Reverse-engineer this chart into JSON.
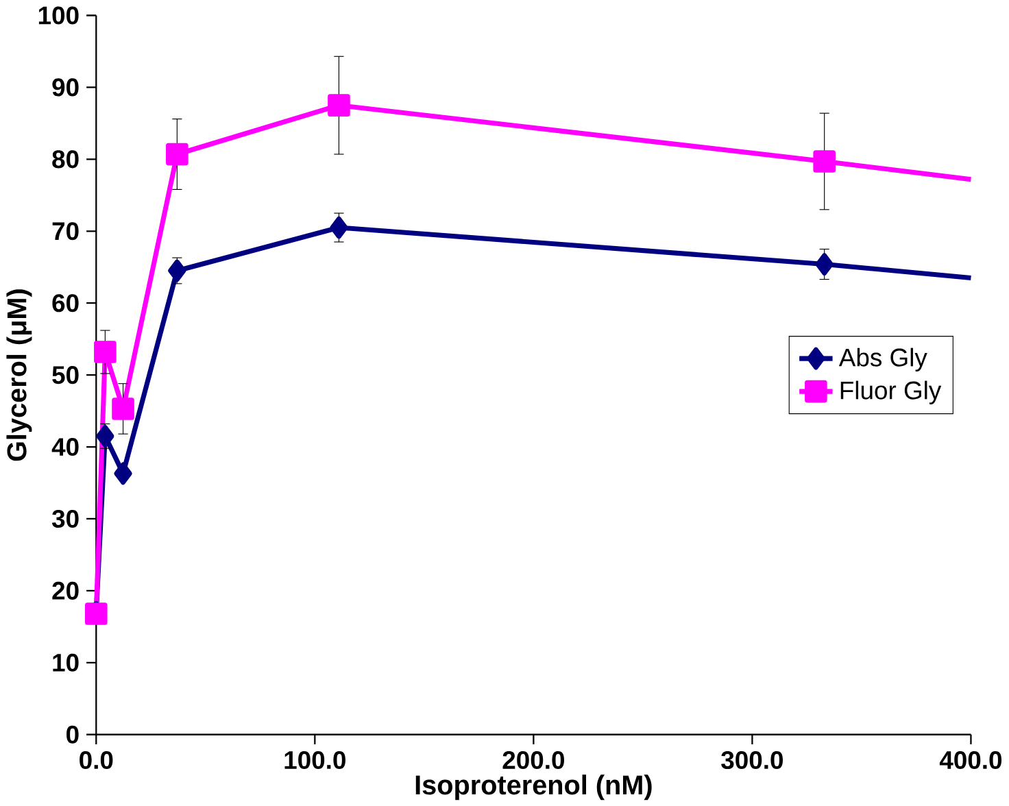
{
  "chart_data": {
    "type": "line",
    "xlabel": "Isoproterenol (nM)",
    "ylabel": "Glycerol (μM)",
    "x": [
      0,
      4.1,
      12.3,
      37,
      111,
      333,
      400
    ],
    "series": [
      {
        "name": "Abs Gly",
        "color": "#000080",
        "marker": "diamond",
        "values": [
          17,
          41.5,
          36.3,
          64.5,
          70.5,
          65.4,
          63.5
        ],
        "errors": [
          null,
          1.7,
          null,
          1.8,
          2,
          2.1,
          null
        ]
      },
      {
        "name": "Fluor Gly",
        "color": "#ff00ff",
        "marker": "square",
        "values": [
          16.8,
          53.2,
          45.3,
          80.7,
          87.5,
          79.7,
          77.2
        ],
        "errors": [
          null,
          3,
          3.5,
          4.9,
          6.8,
          6.7,
          null
        ]
      }
    ],
    "xlim": [
      0,
      400
    ],
    "xticks": [
      {
        "value": 0,
        "label": "0.0"
      },
      {
        "value": 100,
        "label": "100.0"
      },
      {
        "value": 200,
        "label": "200.0"
      },
      {
        "value": 300,
        "label": "300.0"
      },
      {
        "value": 400,
        "label": "400.0"
      }
    ],
    "ylim": [
      0,
      100
    ],
    "yticks": [
      0,
      10,
      20,
      30,
      40,
      50,
      60,
      70,
      80,
      90,
      100
    ],
    "grid": false,
    "legend": "right"
  }
}
